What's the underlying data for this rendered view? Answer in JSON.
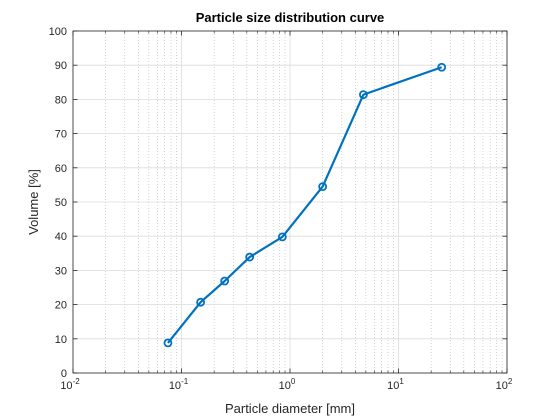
{
  "chart_data": {
    "type": "line",
    "title": "Particle size distribution curve",
    "xlabel": "Particle diameter [mm]",
    "ylabel": "Volume [%]",
    "xscale": "log",
    "xlim": [
      0.01,
      100
    ],
    "ylim": [
      0,
      100
    ],
    "grid": true,
    "x_ticks": [
      {
        "base": "10",
        "exp": "-2",
        "value": 0.01
      },
      {
        "base": "10",
        "exp": "-1",
        "value": 0.1
      },
      {
        "base": "10",
        "exp": "0",
        "value": 1
      },
      {
        "base": "10",
        "exp": "1",
        "value": 10
      },
      {
        "base": "10",
        "exp": "2",
        "value": 100
      }
    ],
    "y_ticks": [
      "0",
      "10",
      "20",
      "30",
      "40",
      "50",
      "60",
      "70",
      "80",
      "90",
      "100"
    ],
    "series": [
      {
        "color": "#0072BD",
        "marker": "circle",
        "x": [
          0.075,
          0.15,
          0.25,
          0.425,
          0.85,
          2.0,
          4.75,
          25.0
        ],
        "y": [
          8.8,
          20.7,
          26.9,
          33.9,
          39.8,
          54.5,
          81.4,
          89.4
        ]
      }
    ]
  }
}
